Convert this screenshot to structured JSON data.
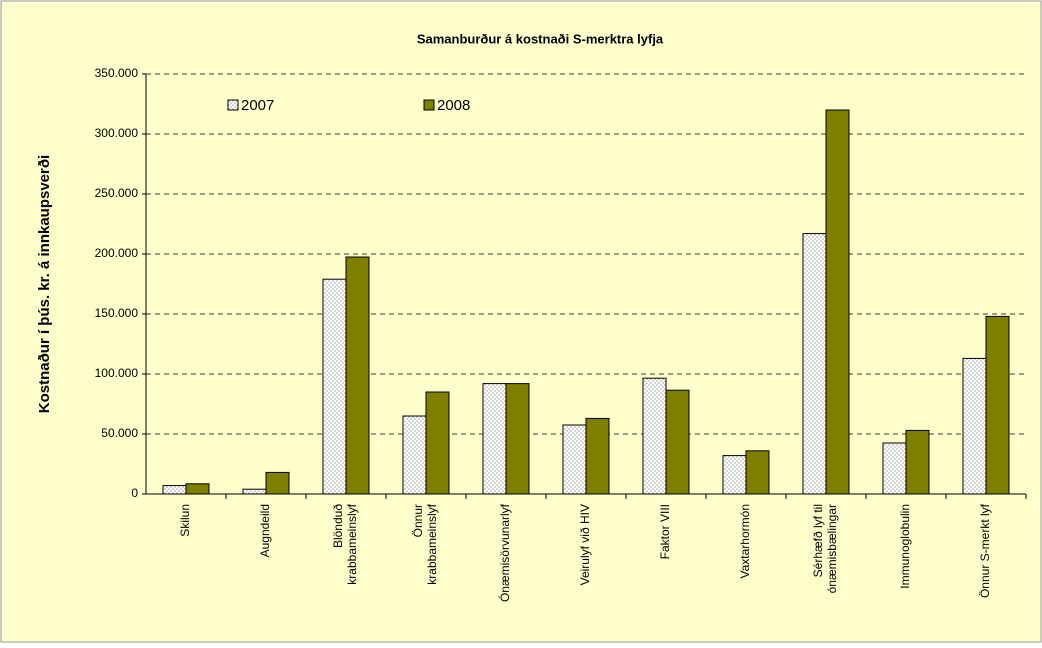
{
  "chart_data": {
    "type": "bar",
    "title": "Samanburður á kostnaði S-merktra lyfja",
    "y_label": "Kostnaður í þús. kr. á innkaupsverði",
    "categories": [
      "Skilun",
      "Augndeild",
      [
        "Blönduð",
        "krabbameinslyf"
      ],
      [
        "Önnur",
        "krabbameinslyf"
      ],
      "Ónæmisörvunarlyf",
      "Veirulyf við HIV",
      "Faktor VIII",
      "Vaxtarhormón",
      [
        "Sérhæfð lyf til",
        "ónæmisbælingar"
      ],
      "Immunoglobulin",
      "Önnur S-merkt lyf"
    ],
    "series": [
      {
        "name": "2007",
        "color": "#e0e0e0",
        "values": [
          7000,
          4000,
          179000,
          65000,
          92000,
          57500,
          96500,
          32000,
          217000,
          42500,
          113000
        ]
      },
      {
        "name": "2008",
        "color": "#808000",
        "values": [
          8500,
          18000,
          197500,
          85000,
          92000,
          63000,
          86500,
          36000,
          320000,
          53000,
          148000
        ]
      }
    ],
    "ylim": [
      0,
      350000
    ],
    "yticks": [
      0,
      {
        "value": 50000,
        "label": "50.000"
      },
      {
        "value": 100000,
        "label": "100.000"
      },
      {
        "value": 150000,
        "label": "150.000"
      },
      {
        "value": 200000,
        "label": "200.000"
      },
      {
        "value": 250000,
        "label": "250.000"
      },
      {
        "value": 300000,
        "label": "300.000"
      },
      {
        "value": 350000,
        "label": "350.000"
      }
    ],
    "grid": true
  }
}
